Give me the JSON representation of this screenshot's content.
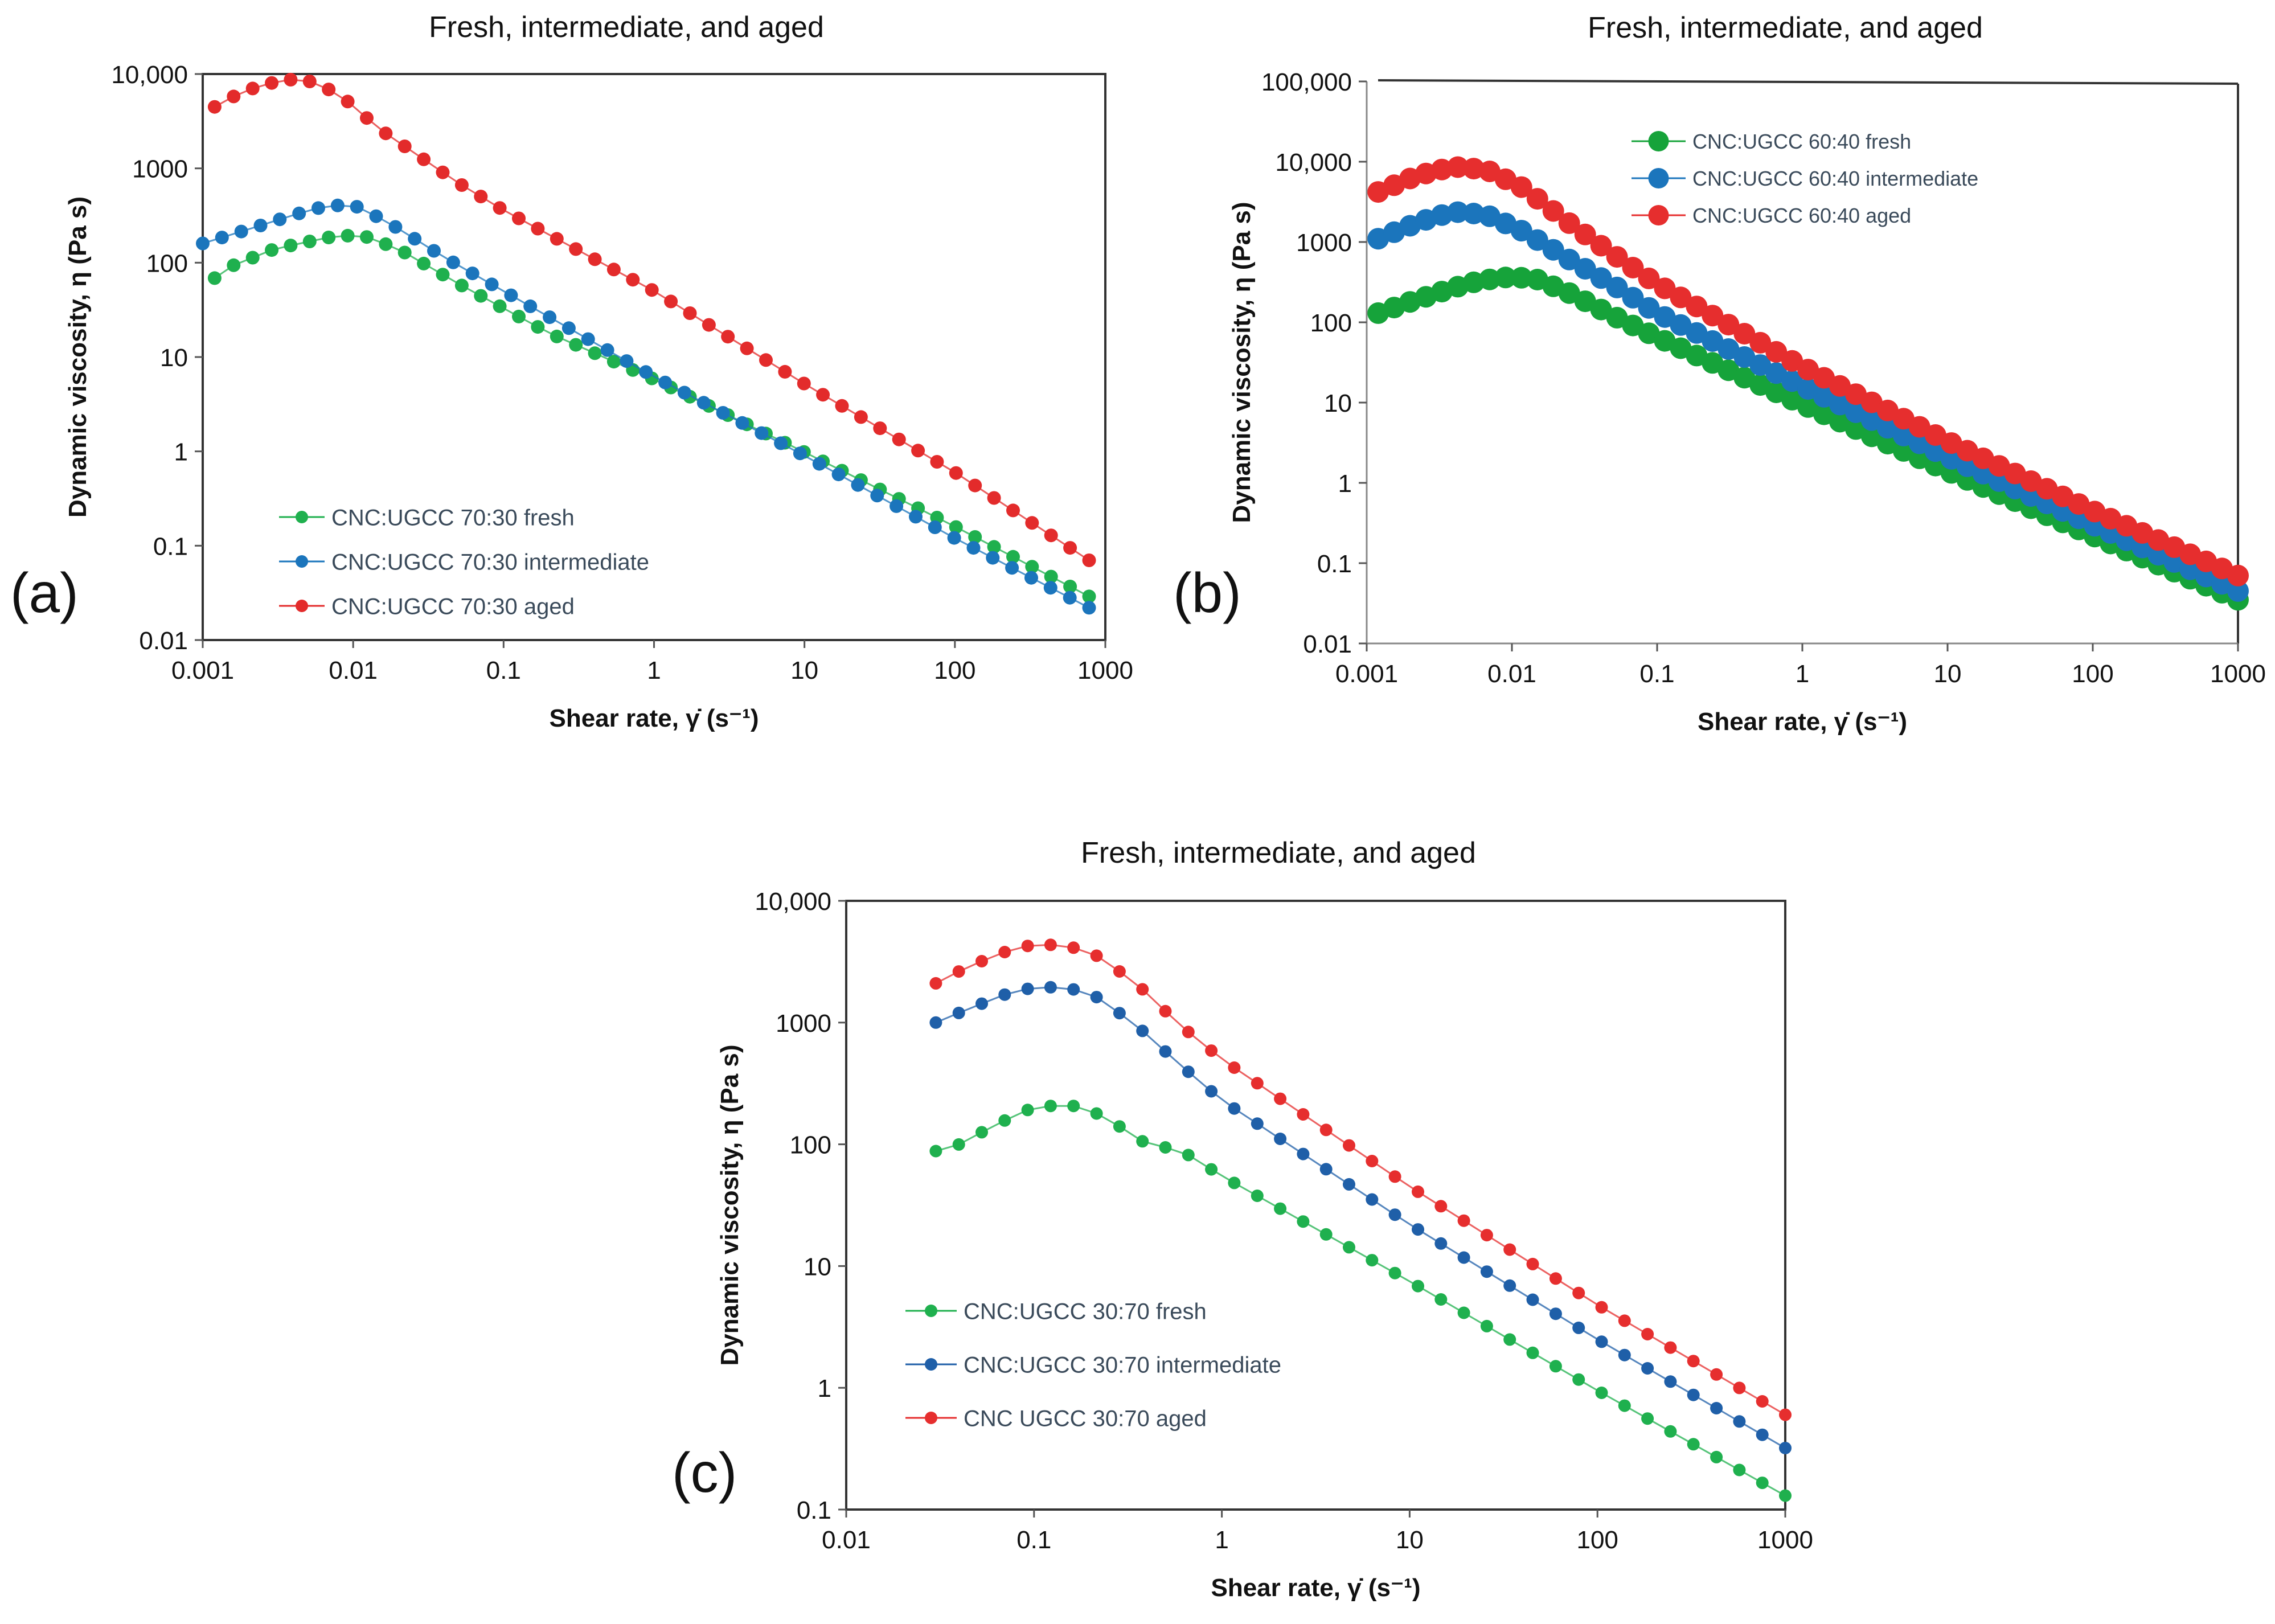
{
  "chart_data": [
    {
      "panel_label": "(a)",
      "type": "line",
      "title": "Fresh, intermediate, and aged",
      "xlabel": "Shear rate, γ̇ (s⁻¹)",
      "ylabel": "Dynamic viscosity, η (Pa s)",
      "xscale": "log",
      "yscale": "log",
      "xlim": [
        0.001,
        1000
      ],
      "ylim": [
        0.01,
        10000
      ],
      "xticks": [
        "0.001",
        "0.01",
        "0.1",
        "1",
        "10",
        "100",
        "1000"
      ],
      "yticks": [
        "0.01",
        "0.1",
        "1",
        "10",
        "100",
        "1000",
        "10,000"
      ],
      "legend_position": "bottom-left",
      "series": [
        {
          "name": "CNC:UGCC 70:30 fresh",
          "color": "#1fb04e",
          "x_start": 0.0012,
          "x_end": 780,
          "points": 47,
          "profile": [
            [
              0.001,
              55
            ],
            [
              0.0015,
              90
            ],
            [
              0.003,
              140
            ],
            [
              0.008,
              195
            ],
            [
              0.012,
              190
            ],
            [
              0.02,
              140
            ],
            [
              0.05,
              60
            ],
            [
              0.2,
              18
            ],
            [
              1,
              5.8
            ],
            [
              10,
              0.98
            ],
            [
              100,
              0.16
            ],
            [
              780,
              0.029
            ]
          ]
        },
        {
          "name": "CNC:UGCC 70:30 intermediate",
          "color": "#1b75bc",
          "x_start": 0.001,
          "x_end": 780,
          "points": 47,
          "profile": [
            [
              0.001,
              160
            ],
            [
              0.002,
              225
            ],
            [
              0.004,
              320
            ],
            [
              0.007,
              410
            ],
            [
              0.011,
              390
            ],
            [
              0.02,
              230
            ],
            [
              0.04,
              115
            ],
            [
              0.1,
              50
            ],
            [
              1,
              6.2
            ],
            [
              10,
              0.9
            ],
            [
              100,
              0.12
            ],
            [
              780,
              0.022
            ]
          ]
        },
        {
          "name": "CNC:UGCC 70:30 aged",
          "color": "#e32b2b",
          "x_start": 0.0012,
          "x_end": 780,
          "points": 47,
          "profile": [
            [
              0.001,
              3800
            ],
            [
              0.0015,
              5500
            ],
            [
              0.002,
              6800
            ],
            [
              0.0035,
              8800
            ],
            [
              0.005,
              8500
            ],
            [
              0.008,
              6200
            ],
            [
              0.015,
              2600
            ],
            [
              0.05,
              700
            ],
            [
              0.1,
              360
            ],
            [
              1,
              50
            ],
            [
              10,
              5.2
            ],
            [
              100,
              0.6
            ],
            [
              780,
              0.07
            ]
          ]
        }
      ]
    },
    {
      "panel_label": "(b)",
      "type": "line",
      "title": "Fresh, intermediate, and aged",
      "xlabel": "Shear rate, γ̇ (s⁻¹)",
      "ylabel": "Dynamic viscosity, η (Pa s)",
      "xscale": "log",
      "yscale": "log",
      "xlim": [
        0.001,
        1000
      ],
      "ylim": [
        0.01,
        100000
      ],
      "xticks": [
        "0.001",
        "0.01",
        "0.1",
        "1",
        "10",
        "100",
        "1000"
      ],
      "yticks": [
        "0.01",
        "0.1",
        "1",
        "10",
        "100",
        "1000",
        "10,000",
        "100,000"
      ],
      "legend_position": "top-left",
      "series": [
        {
          "name": "CNC:UGCC 60:40 fresh",
          "color": "#16a33a",
          "x_start": 0.0012,
          "x_end": 1000,
          "points": 55,
          "profile": [
            [
              0.0012,
              130
            ],
            [
              0.002,
              180
            ],
            [
              0.004,
              270
            ],
            [
              0.006,
              330
            ],
            [
              0.01,
              370
            ],
            [
              0.015,
              340
            ],
            [
              0.025,
              230
            ],
            [
              0.05,
              120
            ],
            [
              0.1,
              65
            ],
            [
              1,
              9.5
            ],
            [
              10,
              1.4
            ],
            [
              100,
              0.22
            ],
            [
              1000,
              0.035
            ]
          ]
        },
        {
          "name": "CNC:UGCC 60:40 intermediate",
          "color": "#1b75bc",
          "x_start": 0.0012,
          "x_end": 1000,
          "points": 55,
          "profile": [
            [
              0.0012,
              1100
            ],
            [
              0.002,
              1600
            ],
            [
              0.003,
              2100
            ],
            [
              0.0045,
              2400
            ],
            [
              0.007,
              2100
            ],
            [
              0.012,
              1350
            ],
            [
              0.025,
              600
            ],
            [
              0.05,
              290
            ],
            [
              0.1,
              130
            ],
            [
              1,
              16
            ],
            [
              10,
              2.1
            ],
            [
              100,
              0.3
            ],
            [
              1000,
              0.045
            ]
          ]
        },
        {
          "name": "CNC:UGCC 60:40 aged",
          "color": "#e62e2e",
          "x_start": 0.0012,
          "x_end": 1000,
          "points": 55,
          "profile": [
            [
              0.0012,
              4200
            ],
            [
              0.002,
              6200
            ],
            [
              0.003,
              7800
            ],
            [
              0.0045,
              8700
            ],
            [
              0.007,
              7600
            ],
            [
              0.012,
              4700
            ],
            [
              0.025,
              1700
            ],
            [
              0.05,
              700
            ],
            [
              0.1,
              300
            ],
            [
              1,
              28
            ],
            [
              10,
              3.3
            ],
            [
              100,
              0.45
            ],
            [
              1000,
              0.07
            ]
          ]
        }
      ]
    },
    {
      "panel_label": "(c)",
      "type": "line",
      "title": "Fresh, intermediate, and aged",
      "xlabel": "Shear rate, γ̇ (s⁻¹)",
      "ylabel": "Dynamic viscosity, η (Pa s)",
      "xscale": "log",
      "yscale": "log",
      "xlim": [
        0.01,
        1000
      ],
      "ylim": [
        0.1,
        10000
      ],
      "xticks": [
        "0.01",
        "0.1",
        "1",
        "10",
        "100",
        "1000"
      ],
      "yticks": [
        "0.1",
        "1",
        "10",
        "100",
        "1000",
        "10,000"
      ],
      "legend_position": "bottom-left",
      "series": [
        {
          "name": "CNC:UGCC 30:70 fresh",
          "color": "#1fb04e",
          "x_start": 0.03,
          "x_end": 1000,
          "points": 38,
          "profile": [
            [
              0.03,
              88
            ],
            [
              0.04,
              100
            ],
            [
              0.06,
              140
            ],
            [
              0.09,
              190
            ],
            [
              0.13,
              210
            ],
            [
              0.18,
              205
            ],
            [
              0.25,
              160
            ],
            [
              0.4,
              100
            ],
            [
              0.6,
              90
            ],
            [
              1,
              55
            ],
            [
              10,
              7.5
            ],
            [
              100,
              0.95
            ],
            [
              1000,
              0.13
            ]
          ]
        },
        {
          "name": "CNC:UGCC 30:70 intermediate",
          "color": "#1f5fa8",
          "x_start": 0.03,
          "x_end": 1000,
          "points": 38,
          "profile": [
            [
              0.03,
              1000
            ],
            [
              0.045,
              1300
            ],
            [
              0.07,
              1700
            ],
            [
              0.1,
              1950
            ],
            [
              0.15,
              1950
            ],
            [
              0.22,
              1600
            ],
            [
              0.35,
              950
            ],
            [
              0.6,
              450
            ],
            [
              1,
              230
            ],
            [
              10,
              22
            ],
            [
              100,
              2.5
            ],
            [
              1000,
              0.32
            ]
          ]
        },
        {
          "name": "CNC UGCC 30:70 aged",
          "color": "#e62e2e",
          "x_start": 0.03,
          "x_end": 1000,
          "points": 38,
          "profile": [
            [
              0.03,
              2100
            ],
            [
              0.045,
              2900
            ],
            [
              0.07,
              3800
            ],
            [
              0.1,
              4400
            ],
            [
              0.15,
              4300
            ],
            [
              0.22,
              3500
            ],
            [
              0.35,
              2100
            ],
            [
              0.6,
              950
            ],
            [
              1,
              500
            ],
            [
              10,
              45
            ],
            [
              100,
              4.8
            ],
            [
              1000,
              0.6
            ]
          ]
        }
      ]
    }
  ]
}
